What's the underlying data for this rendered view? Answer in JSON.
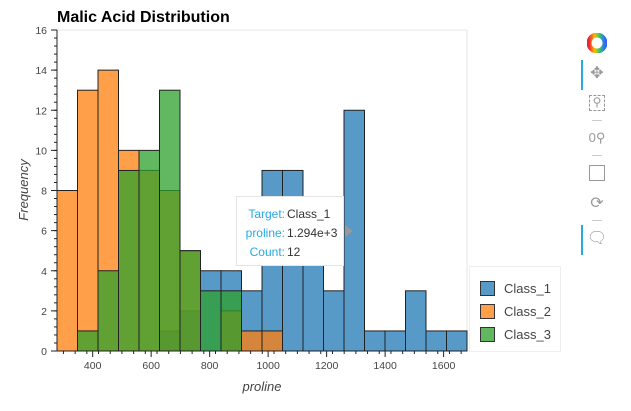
{
  "chart_data": {
    "type": "bar",
    "title": "Malic Acid Distribution",
    "xlabel": "proline",
    "ylabel": "Frequency",
    "xlim": [
      278,
      1680
    ],
    "ylim": [
      0,
      16
    ],
    "x_ticks": [
      400,
      600,
      800,
      1000,
      1200,
      1400,
      1600
    ],
    "y_ticks": [
      0,
      2,
      4,
      6,
      8,
      10,
      12,
      14,
      16
    ],
    "bin_edges": [
      278,
      348.1,
      418.2,
      488.3,
      558.4,
      628.5,
      698.6,
      768.7,
      838.8,
      908.9,
      979,
      1049.1,
      1119.2,
      1189.3,
      1259.4,
      1329.5,
      1399.6,
      1469.7,
      1539.8,
      1609.9,
      1680
    ],
    "legend_position": "bottom-right",
    "series": [
      {
        "name": "Class_1",
        "color": "#1f77b4",
        "values": [
          0,
          0,
          0,
          0,
          0,
          1,
          2,
          4,
          4,
          3,
          9,
          9,
          5,
          3,
          12,
          1,
          1,
          3,
          1,
          1
        ]
      },
      {
        "name": "Class_2",
        "color": "#ff7f0e",
        "values": [
          8,
          13,
          14,
          10,
          9,
          8,
          5,
          0,
          2,
          1,
          1,
          0,
          0,
          0,
          0,
          0,
          0,
          0,
          0,
          0
        ]
      },
      {
        "name": "Class_3",
        "color": "#2ca02c",
        "values": [
          0,
          1,
          4,
          9,
          10,
          13,
          5,
          3,
          3,
          0,
          0,
          0,
          0,
          0,
          0,
          0,
          0,
          0,
          0,
          0
        ]
      }
    ]
  },
  "tooltip": {
    "target_label": "Target:",
    "target_value": "Class_1",
    "proline_label": "proline:",
    "proline_value": "1.294e+3",
    "count_label": "Count:",
    "count_value": "12"
  },
  "legend": [
    "Class_1",
    "Class_2",
    "Class_3"
  ],
  "toolbar": [
    "bokeh-logo",
    "pan",
    "box-zoom",
    "wheel-zoom",
    "save",
    "reset",
    "hover"
  ]
}
